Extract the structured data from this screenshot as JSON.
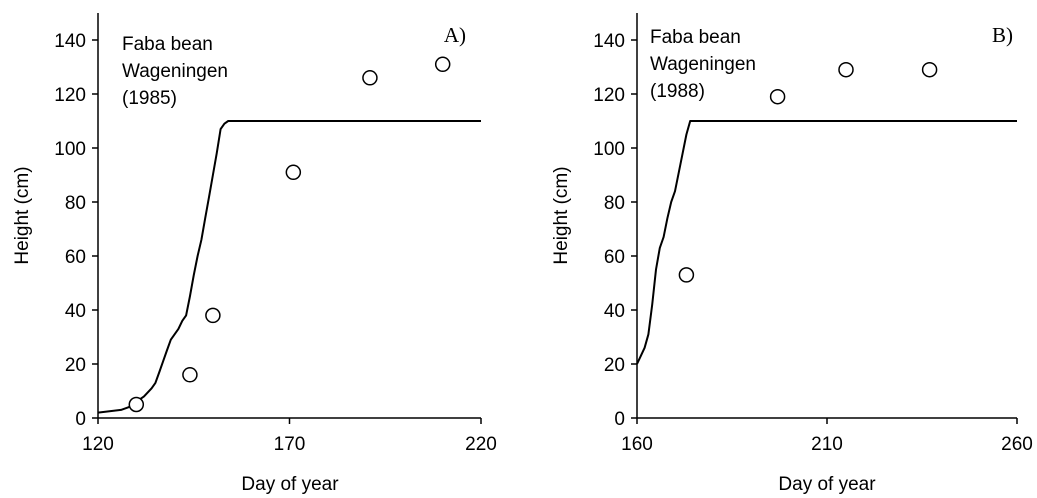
{
  "chart_data": [
    {
      "type": "scatter",
      "panel_label": "A)",
      "annotation": [
        "Faba bean",
        "Wageningen",
        "(1985)"
      ],
      "xlabel": "Day of year",
      "ylabel": "Height (cm)",
      "xlim": [
        120,
        220
      ],
      "ylim": [
        0,
        150
      ],
      "xticks": [
        120,
        170,
        220
      ],
      "yticks": [
        0,
        20,
        40,
        60,
        80,
        100,
        120,
        140
      ],
      "grid": false,
      "series": [
        {
          "kind": "line",
          "x": [
            120,
            123,
            126,
            128,
            130,
            132,
            134,
            135,
            136,
            137,
            138,
            139,
            140,
            141,
            142,
            143,
            144,
            145,
            146,
            147,
            148,
            149,
            150,
            151,
            152,
            153,
            154,
            155,
            156,
            220
          ],
          "y": [
            2,
            2.5,
            3,
            4,
            6,
            8,
            11,
            13,
            17,
            21,
            25,
            29,
            31,
            33,
            36,
            38,
            45,
            53,
            60,
            66,
            74,
            82,
            90,
            98,
            107,
            109,
            110,
            110,
            110,
            110
          ]
        },
        {
          "kind": "marker",
          "x": [
            130,
            144,
            150,
            171,
            191,
            210
          ],
          "y": [
            5,
            16,
            38,
            91,
            126,
            131
          ]
        }
      ]
    },
    {
      "type": "scatter",
      "panel_label": "B)",
      "annotation": [
        "Faba bean",
        "Wageningen",
        "(1988)"
      ],
      "xlabel": "Day of year",
      "ylabel": "Height (cm)",
      "xlim": [
        160,
        260
      ],
      "ylim": [
        0,
        150
      ],
      "xticks": [
        160,
        210,
        260
      ],
      "yticks": [
        0,
        20,
        40,
        60,
        80,
        100,
        120,
        140
      ],
      "grid": false,
      "series": [
        {
          "kind": "line",
          "x": [
            160,
            161,
            162,
            163,
            164,
            165,
            166,
            167,
            168,
            169,
            170,
            171,
            172,
            173,
            174,
            175,
            176,
            260
          ],
          "y": [
            20,
            23,
            26,
            31,
            42,
            55,
            63,
            67,
            74,
            80,
            84,
            91,
            98,
            105,
            110,
            110,
            110,
            110
          ]
        },
        {
          "kind": "marker",
          "x": [
            173,
            197,
            215,
            237
          ],
          "y": [
            53,
            119,
            129,
            129
          ]
        }
      ]
    }
  ]
}
